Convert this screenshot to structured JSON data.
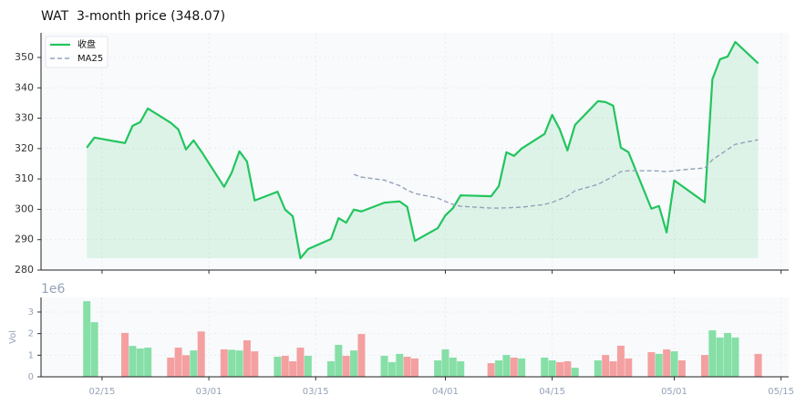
{
  "chart_data": [
    {
      "type": "line",
      "title": "WAT  3-month price (348.07)",
      "x": [
        "02/13",
        "02/14",
        "02/18",
        "02/19",
        "02/20",
        "02/21",
        "02/24",
        "02/25",
        "02/26",
        "02/27",
        "02/28",
        "03/03",
        "03/04",
        "03/05",
        "03/06",
        "03/07",
        "03/10",
        "03/11",
        "03/12",
        "03/13",
        "03/14",
        "03/17",
        "03/18",
        "03/19",
        "03/20",
        "03/21",
        "03/24",
        "03/25",
        "03/26",
        "03/27",
        "03/28",
        "03/31",
        "04/01",
        "04/02",
        "04/03",
        "04/07",
        "04/08",
        "04/09",
        "04/10",
        "04/11",
        "04/14",
        "04/15",
        "04/16",
        "04/17",
        "04/18",
        "04/21",
        "04/22",
        "04/23",
        "04/24",
        "04/25",
        "04/28",
        "04/29",
        "04/30",
        "05/01",
        "05/02",
        "05/05",
        "05/06",
        "05/07",
        "05/08",
        "05/09",
        "05/12"
      ],
      "series": [
        {
          "name": "收盘",
          "color": "#22c55e",
          "fill": true,
          "values": [
            320.3,
            323.6,
            321.8,
            327.5,
            328.7,
            333.2,
            328.5,
            326.3,
            319.7,
            322.7,
            319.1,
            307.4,
            312.1,
            319.1,
            315.7,
            302.9,
            305.8,
            299.9,
            297.7,
            283.9,
            286.9,
            290.2,
            297.1,
            295.6,
            299.9,
            299.3,
            302.2,
            302.4,
            302.6,
            300.8,
            289.6,
            293.8,
            298.0,
            300.4,
            304.6,
            304.3,
            307.6,
            318.8,
            317.6,
            320.0,
            324.8,
            331.1,
            326.3,
            319.4,
            327.8,
            335.6,
            335.3,
            334.1,
            320.3,
            318.8,
            300.2,
            301.1,
            292.4,
            309.5,
            307.7,
            302.3,
            342.8,
            349.4,
            350.3,
            355.1,
            348.07
          ]
        },
        {
          "name": "MA25",
          "color": "#94a3b8",
          "dashed": true,
          "values": [
            null,
            null,
            null,
            null,
            null,
            null,
            null,
            null,
            null,
            null,
            null,
            null,
            null,
            null,
            null,
            null,
            null,
            null,
            null,
            null,
            null,
            null,
            null,
            null,
            311.5,
            310.6,
            309.6,
            308.7,
            307.8,
            306.3,
            305.2,
            303.7,
            302.6,
            301.6,
            301.0,
            300.4,
            300.4,
            300.5,
            300.6,
            300.7,
            301.6,
            302.3,
            303.3,
            304.3,
            306.1,
            308.2,
            309.5,
            310.8,
            312.4,
            312.7,
            312.7,
            312.6,
            312.4,
            312.7,
            313.0,
            313.6,
            316.3,
            318.0,
            319.7,
            321.4,
            322.9
          ]
        }
      ],
      "xlim": [
        "02/07",
        "05/16"
      ],
      "xticks": [
        "02/15",
        "03/01",
        "03/15",
        "04/01",
        "04/15",
        "05/01",
        "05/15"
      ],
      "ylim": [
        280,
        358.1
      ],
      "yticks": [
        280,
        290,
        300,
        310,
        320,
        330,
        340,
        350
      ],
      "grid": true,
      "legend": "upper left"
    },
    {
      "type": "bar",
      "ylabel": "Vol",
      "offset_label": "1e6",
      "up_color": "#86dfa6",
      "down_color": "#f4a0a0",
      "x": [
        "02/13",
        "02/14",
        "02/18",
        "02/19",
        "02/20",
        "02/21",
        "02/24",
        "02/25",
        "02/26",
        "02/27",
        "02/28",
        "03/03",
        "03/04",
        "03/05",
        "03/06",
        "03/07",
        "03/10",
        "03/11",
        "03/12",
        "03/13",
        "03/14",
        "03/17",
        "03/18",
        "03/19",
        "03/20",
        "03/21",
        "03/24",
        "03/25",
        "03/26",
        "03/27",
        "03/28",
        "03/31",
        "04/01",
        "04/02",
        "04/03",
        "04/07",
        "04/08",
        "04/09",
        "04/10",
        "04/11",
        "04/14",
        "04/15",
        "04/16",
        "04/17",
        "04/18",
        "04/21",
        "04/22",
        "04/23",
        "04/24",
        "04/25",
        "04/28",
        "04/29",
        "04/30",
        "05/01",
        "05/02",
        "05/05",
        "05/06",
        "05/07",
        "05/08",
        "05/09",
        "05/12"
      ],
      "values": [
        3.5,
        2.53,
        2.03,
        1.43,
        1.31,
        1.35,
        0.89,
        1.35,
        1.0,
        1.22,
        2.1,
        1.27,
        1.25,
        1.22,
        1.69,
        1.18,
        0.93,
        0.97,
        0.72,
        1.35,
        0.97,
        0.72,
        1.48,
        0.97,
        1.22,
        1.98,
        0.97,
        0.68,
        1.06,
        0.93,
        0.85,
        0.76,
        1.27,
        0.89,
        0.72,
        0.63,
        0.76,
        1.01,
        0.89,
        0.85,
        0.89,
        0.76,
        0.68,
        0.72,
        0.42,
        0.76,
        1.01,
        0.72,
        1.44,
        0.85,
        1.14,
        1.06,
        1.27,
        1.18,
        0.76,
        1.01,
        2.15,
        1.82,
        2.03,
        1.82,
        1.06
      ],
      "xlim": [
        "02/07",
        "05/16"
      ],
      "xticks": [
        "02/15",
        "03/01",
        "03/15",
        "04/01",
        "04/15",
        "05/01",
        "05/15"
      ],
      "ylim": [
        0,
        3.675
      ],
      "yticks": [
        0,
        1,
        2,
        3
      ],
      "grid": true
    }
  ]
}
